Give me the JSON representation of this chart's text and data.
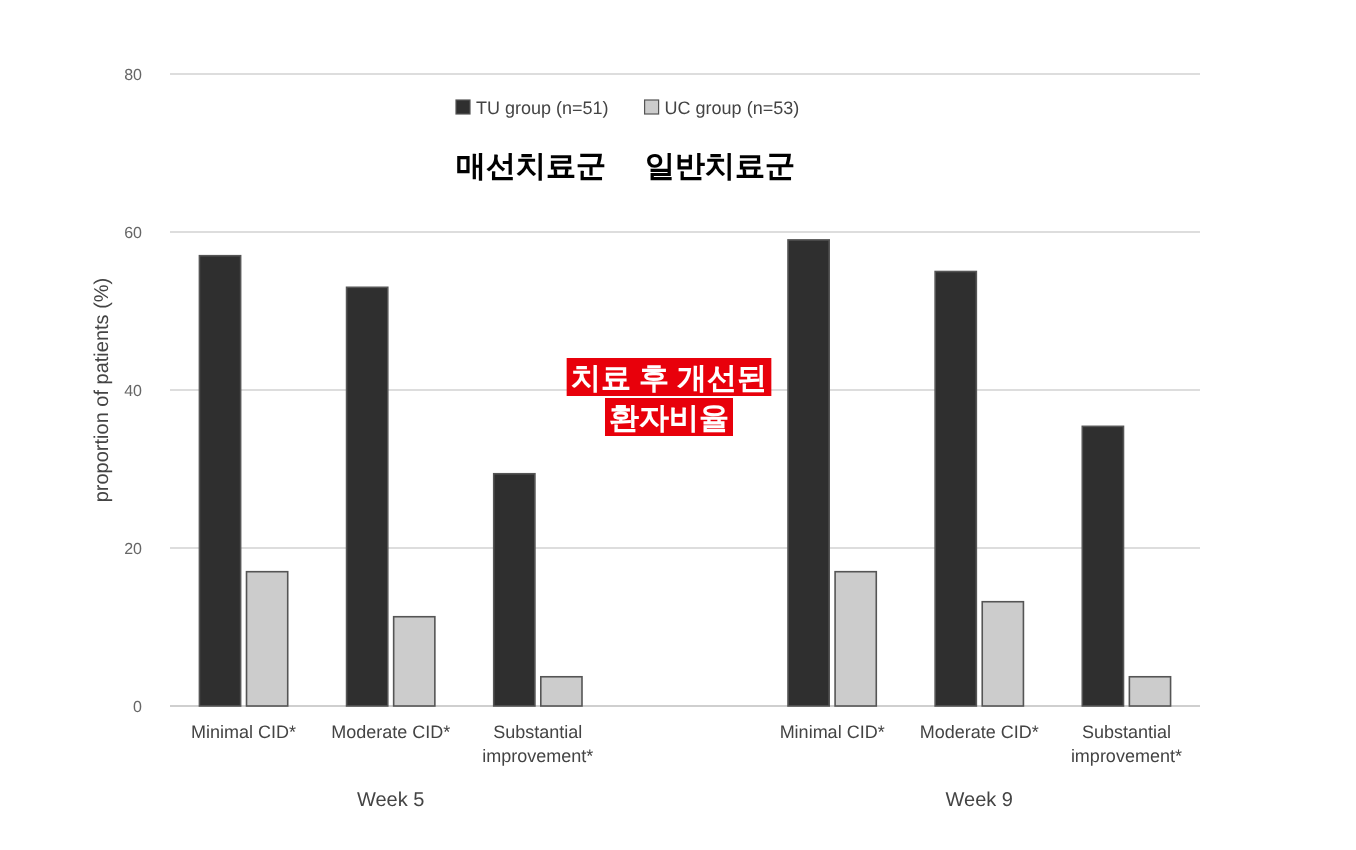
{
  "chart_data": {
    "type": "bar",
    "categories": [
      "Minimal CID*",
      "Moderate CID*",
      "Substantial improvement*",
      null,
      "Minimal CID*",
      "Moderate CID*",
      "Substantial improvement*"
    ],
    "series": [
      {
        "name": "TU group (n=51)",
        "color": "#2f2f2f",
        "values": [
          57,
          53,
          29.4,
          null,
          59,
          55,
          35.4
        ]
      },
      {
        "name": "UC group (n=53)",
        "color": "#cccccc",
        "values": [
          17,
          11.3,
          3.7,
          null,
          17,
          13.2,
          3.7
        ]
      }
    ],
    "ylabel": "proportion of patients (%)",
    "ylim": [
      0,
      80
    ],
    "yticks": [
      0,
      20,
      40,
      60,
      80
    ],
    "grid": "y",
    "legend": "top",
    "annotations": [
      "매선치료군",
      "일반치료군",
      "치료 후 개선된\n환자비율",
      "Week 5",
      "Week 9"
    ]
  }
}
